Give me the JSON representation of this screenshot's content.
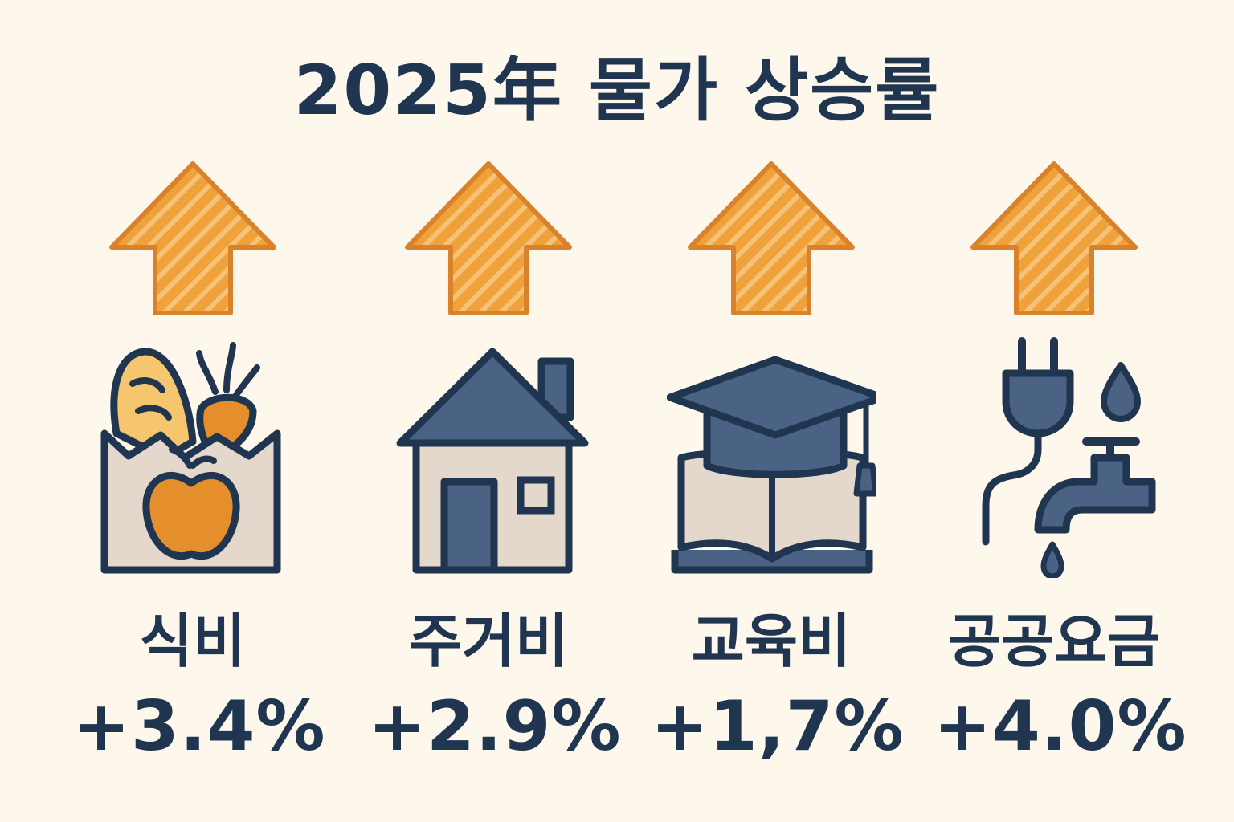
{
  "title": "2025年 물가 상승률",
  "colors": {
    "background": "#fdf7ec",
    "navy": "#1f3550",
    "slate": "#4a6283",
    "orange": "#f0a23a",
    "orange_dark": "#d9822b",
    "beige": "#e3d8cb"
  },
  "items": [
    {
      "label": "식비",
      "value": "+3.4%",
      "icon": "grocery-bag-icon",
      "arrow": "up-arrow-icon"
    },
    {
      "label": "주거비",
      "value": "+2.9%",
      "icon": "house-icon",
      "arrow": "up-arrow-icon"
    },
    {
      "label": "교육비",
      "value": "+1,7%",
      "icon": "graduation-cap-book-icon",
      "arrow": "up-arrow-icon"
    },
    {
      "label": "공공요금",
      "value": "+4.0%",
      "icon": "plug-and-faucet-icon",
      "arrow": "up-arrow-icon"
    }
  ]
}
